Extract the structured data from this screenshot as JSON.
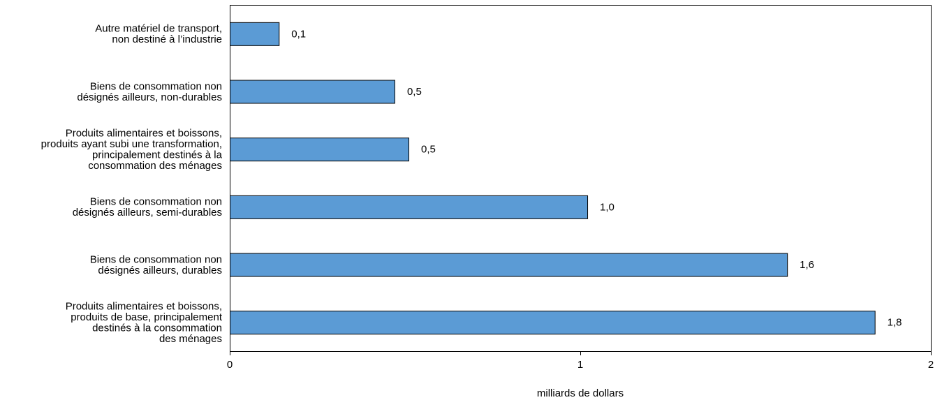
{
  "chart_data": {
    "type": "bar",
    "orientation": "horizontal",
    "categories": [
      [
        "Autre matériel de transport,",
        "non destiné à l’industrie"
      ],
      [
        "Biens de consommation non",
        "désignés ailleurs, non-durables"
      ],
      [
        "Produits alimentaires et boissons,",
        "produits ayant subi une transformation,",
        "principalement destinés à la",
        "consommation des ménages"
      ],
      [
        "Biens de consommation non",
        "désignés ailleurs, semi-durables"
      ],
      [
        "Biens de consommation non",
        "désignés ailleurs, durables"
      ],
      [
        "Produits alimentaires et boissons,",
        "produits de base, principalement",
        "destinés à la consommation",
        "des ménages"
      ]
    ],
    "values": [
      0.14,
      0.47,
      0.51,
      1.02,
      1.59,
      1.84
    ],
    "value_labels": [
      "0,1",
      "0,5",
      "0,5",
      "1,0",
      "1,6",
      "1,8"
    ],
    "x_ticks": [
      0,
      1,
      2
    ],
    "x_tick_labels": [
      "0",
      "1",
      "2"
    ],
    "xlabel": "milliards de dollars",
    "ylabel": "",
    "title": "",
    "xlim": [
      0,
      2
    ],
    "grid": false,
    "legend": "none",
    "bar_color": "#5b9bd5",
    "bar_edge_color": "#000000"
  }
}
